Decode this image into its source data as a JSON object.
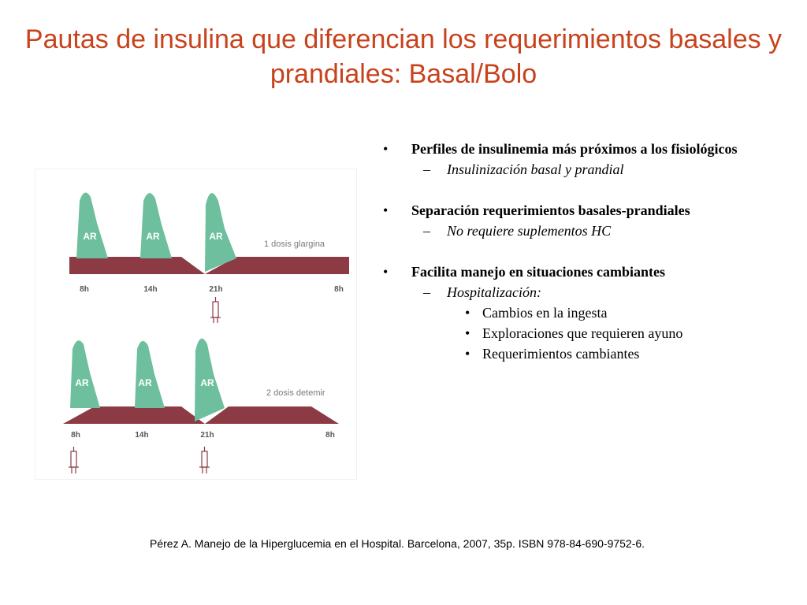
{
  "title": "Pautas de insulina que diferencian los requerimientos basales y prandiales: Basal/Bolo",
  "colors": {
    "title": "#c8421c",
    "peak_fill": "#6dbf9e",
    "basal_fill": "#8c3a44",
    "label_color": "#7a7a7a"
  },
  "diagram": {
    "panels": [
      {
        "regimen_label": "1 dosis glargina",
        "peak_label": "AR",
        "times": [
          "8h",
          "14h",
          "21h",
          "8h"
        ],
        "injection_icon": "syringe-icon"
      },
      {
        "regimen_label": "2 dosis detemir",
        "peak_label": "AR",
        "times": [
          "8h",
          "14h",
          "21h",
          "8h"
        ],
        "injection_icon": "syringe-icon"
      }
    ]
  },
  "bullets": [
    {
      "text": "Perfiles de insulinemia más próximos a los fisiológicos",
      "sub": [
        {
          "text": "Insulinización basal y prandial",
          "sub": []
        }
      ]
    },
    {
      "text": "Separación requerimientos basales-prandiales",
      "sub": [
        {
          "text": "No requiere suplementos HC",
          "sub": []
        }
      ]
    },
    {
      "text": "Facilita manejo en situaciones cambiantes",
      "sub": [
        {
          "text": "Hospitalización:",
          "sub": [
            "Cambios en la ingesta",
            "Exploraciones que requieren ayuno",
            "Requerimientos cambiantes"
          ]
        }
      ]
    }
  ],
  "markers": {
    "level1": "•",
    "level2": "–",
    "level3": "•"
  },
  "reference": "Pérez A. Manejo de la Hiperglucemia en el Hospital. Barcelona, 2007, 35p. ISBN 978-84-690-9752-6."
}
